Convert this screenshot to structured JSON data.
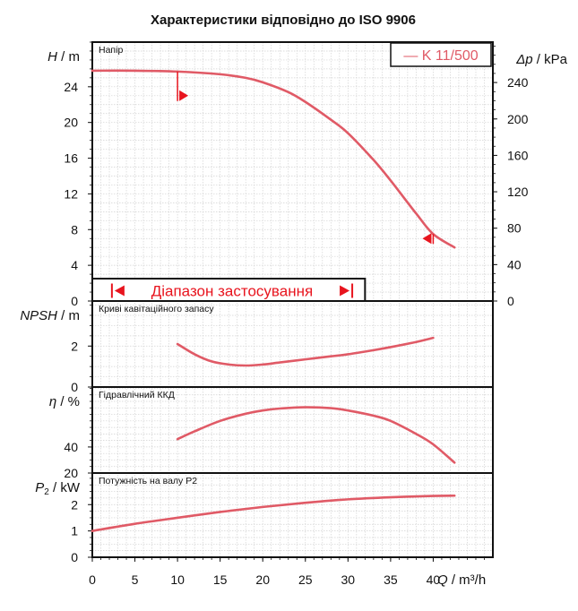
{
  "chart_data": {
    "type": "line",
    "title": "Характеристики відповідно до ISO 9906",
    "x_axis": {
      "label_var": "Q",
      "label_unit": " / m³/h",
      "range": [
        0,
        47
      ],
      "ticks": [
        0,
        5,
        10,
        15,
        20,
        25,
        30,
        35,
        40
      ]
    },
    "legend": {
      "entry": "— K 11/500",
      "position": "top-right"
    },
    "grid": true,
    "color": "#e05a66",
    "marker_color": "#e8141e",
    "panels": [
      {
        "id": "head",
        "label": "Напір",
        "y_axis": {
          "label_var": "H",
          "label_unit": " / m",
          "range": [
            0,
            29
          ],
          "ticks": [
            0,
            4,
            8,
            12,
            16,
            20,
            24
          ]
        },
        "y2_axis": {
          "label_var": "Δp",
          "label_unit": " / kPa",
          "range": [
            0,
            284.4
          ],
          "ticks": [
            0,
            40,
            80,
            120,
            160,
            200,
            240
          ]
        },
        "series": [
          {
            "x": [
              0,
              5,
              10,
              15,
              18,
              20,
              23,
              25,
              28,
              30,
              33,
              35,
              38,
              40,
              42.5
            ],
            "y": [
              25.8,
              25.8,
              25.7,
              25.4,
              25.0,
              24.5,
              23.4,
              22.3,
              20.3,
              18.8,
              15.8,
              13.5,
              9.8,
              7.5,
              6.0
            ]
          }
        ],
        "markers": [
          {
            "x": 10,
            "y": 23.0,
            "direction": "right"
          },
          {
            "x": 40,
            "y": 7.0,
            "direction": "left"
          }
        ],
        "operating_range": {
          "label": "Діапазон застосування",
          "from": 2.3,
          "to": 30.5
        }
      },
      {
        "id": "npsh",
        "label": "Криві кавітаційного запасу",
        "y_axis": {
          "label_var": "NPSH",
          "label_unit": " / m",
          "range": [
            0,
            4.2
          ],
          "ticks": [
            0,
            2
          ]
        },
        "series": [
          {
            "x": [
              10,
              12,
              14,
              16,
              18,
              20,
              22,
              25,
              28,
              30,
              33,
              35,
              38,
              40
            ],
            "y": [
              2.1,
              1.6,
              1.25,
              1.1,
              1.05,
              1.1,
              1.2,
              1.35,
              1.5,
              1.6,
              1.8,
              1.95,
              2.2,
              2.4
            ]
          }
        ]
      },
      {
        "id": "efficiency",
        "label": "Гідравлічний ККД",
        "y_axis": {
          "label_var": "η",
          "label_unit": " / %",
          "range": [
            20,
            86
          ],
          "ticks": [
            20,
            40
          ]
        },
        "series": [
          {
            "x": [
              10,
              12,
              15,
              18,
              20,
              22,
              25,
              28,
              30,
              33,
              35,
              38,
              40,
              42.5
            ],
            "y": [
              46,
              52,
              60,
              65.5,
              68,
              69.5,
              70.5,
              69.8,
              68,
              64,
              60,
              50,
              42,
              28
            ]
          }
        ]
      },
      {
        "id": "power",
        "label": "Потужність на валу P2",
        "y_axis": {
          "label_var": "P",
          "label_sub": "2",
          "label_unit": " / kW",
          "range": [
            0,
            3.2
          ],
          "ticks": [
            0,
            1,
            2
          ]
        },
        "series": [
          {
            "x": [
              0,
              5,
              10,
              15,
              20,
              25,
              30,
              35,
              40,
              42.5
            ],
            "y": [
              1.0,
              1.27,
              1.5,
              1.72,
              1.91,
              2.07,
              2.2,
              2.28,
              2.33,
              2.34
            ]
          }
        ]
      }
    ]
  }
}
